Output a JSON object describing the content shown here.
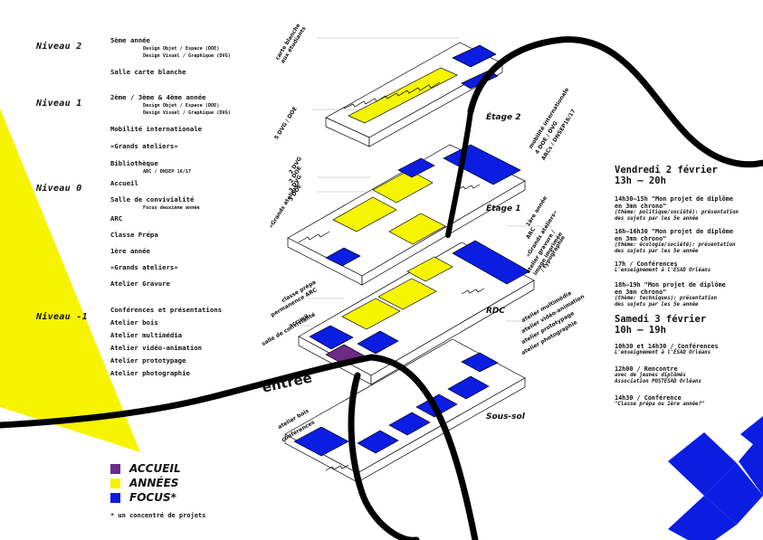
{
  "colors": {
    "accueil": "#6b2a86",
    "annees": "#f5f500",
    "focus": "#0b1de0",
    "line": "#000000",
    "triangle": "#f7f400"
  },
  "levels": [
    {
      "title": "Niveau 2",
      "items": [
        {
          "text": "5ème année",
          "subs": [
            "Design Objet / Espace (DOE)",
            "Design Visuel / Graphique (DVG)"
          ]
        },
        {
          "text": "Salle carte blanche",
          "subs": []
        }
      ]
    },
    {
      "title": "Niveau 1",
      "items": [
        {
          "text": "2ème / 3ème & 4ème année",
          "subs": [
            "Design Objet / Espace (DOE)",
            "Design Visuel / Graphique (DVG)"
          ]
        },
        {
          "text": "Mobilité internationale",
          "subs": []
        },
        {
          "text": "«Grands ateliers»",
          "subs": []
        },
        {
          "text": "Bibliothèque",
          "subs": [
            "ARC / DNSEP 16/17"
          ]
        }
      ]
    },
    {
      "title": "Niveau 0",
      "items": [
        {
          "text": "Accueil",
          "subs": []
        },
        {
          "text": "Salle de convivialité",
          "subs": [
            "Focus deuxième année"
          ]
        },
        {
          "text": "ARC",
          "subs": []
        },
        {
          "text": "Classe Prépa",
          "subs": []
        },
        {
          "text": "1ère année",
          "subs": []
        },
        {
          "text": "«Grands ateliers»",
          "subs": []
        },
        {
          "text": "Atelier Gravure",
          "subs": []
        }
      ]
    },
    {
      "title": "Niveau -1",
      "items": [
        {
          "text": "Conférences et présentations",
          "subs": []
        },
        {
          "text": "Atelier bois",
          "subs": []
        },
        {
          "text": "Atelier multimédia",
          "subs": []
        },
        {
          "text": "Atelier vidéo-animation",
          "subs": []
        },
        {
          "text": "Atelier prototypage",
          "subs": []
        },
        {
          "text": "Atelier photographie",
          "subs": []
        }
      ]
    }
  ],
  "schedule": [
    {
      "day": "Vendredi 2 février",
      "hours": "13h – 20h",
      "events": [
        {
          "title": "14h30–15h \"Mon projet de diplôme\nen 3mn chrono\"",
          "sub": "(thème: politique/société): présentation\ndes sujets par les 5e année"
        },
        {
          "title": "16h–16h30 \"Mon projet de diplôme\nen 3mn chrono\"",
          "sub": "(thème: écologie/société): présentation\ndes sujets par les 5e année"
        },
        {
          "title": "17h / Conférences",
          "sub": "L'enseignement à l'ÉSAD Orléans"
        },
        {
          "title": "18h–19h \"Mon projet de diplôme\n en 3mn chrono\"",
          "sub": "(thème: techniques): présentation\ndes sujets par les 5e année"
        }
      ]
    },
    {
      "day": "Samedi 3 février",
      "hours": "10h – 19h",
      "events": [
        {
          "title": "10h30 et 14h30 / Conférences",
          "sub": "L'enseignement à l'ÉSAD Orléans"
        },
        {
          "title": "12h00 / Rencontre",
          "sub": "avec de jeunes diplômés\nAssociation POSTÉSAD Orléans"
        },
        {
          "title": "14h30  / Conférence",
          "sub": "\"Classe prépa ou 1ère année?\""
        }
      ]
    }
  ],
  "legend": {
    "items": [
      {
        "label": "ACCUEIL",
        "color": "#6b2a86"
      },
      {
        "label": "ANNÉES",
        "color": "#f5f500"
      },
      {
        "label": "FOCUS*",
        "color": "#0b1de0"
      }
    ],
    "footnote": "* un concentré de projets"
  },
  "floors": {
    "etage2": "Étage 2",
    "etage1": "Étage 1",
    "rdc": "RDC",
    "soussol": "Sous-sol",
    "entree": "entrée"
  },
  "plan_labels": {
    "n2_carte": "carte blanche\naux étudiants",
    "n2_dvg": "5 DVG / DOE",
    "n1_mob": "mobilité internationale",
    "n1_dvg": "4 DOE / DVG",
    "n1_arc": "ARCs / DNSEP16/17",
    "n1_2dvg": "2 DVG",
    "n1_2doe": "2 DOE",
    "n1_3dvg": "3 DVG",
    "n1_3doe": "3 DOE",
    "n1_grands": "«Grands ateliers»",
    "rdc_1ere": "1ère année",
    "rdc_arc": "ARC",
    "rdc_grands": "«Grands ateliers»",
    "rdc_gravure": "atelier gravure /",
    "rdc_image": "image imprimée",
    "rdc_typo": "/ typographie",
    "rdc_prepa": "classe prépa",
    "rdc_perm": "permanence ARC",
    "rdc_accueil": "accueil",
    "rdc_conv": "salle de convivialité",
    "ss_multi": "atelier multimédia",
    "ss_video": "atelier vidéo-animation",
    "ss_proto": "atelier prototypage",
    "ss_photo": "atelier photographie",
    "ss_bois": "atelier bois",
    "ss_conf": "conférences"
  }
}
